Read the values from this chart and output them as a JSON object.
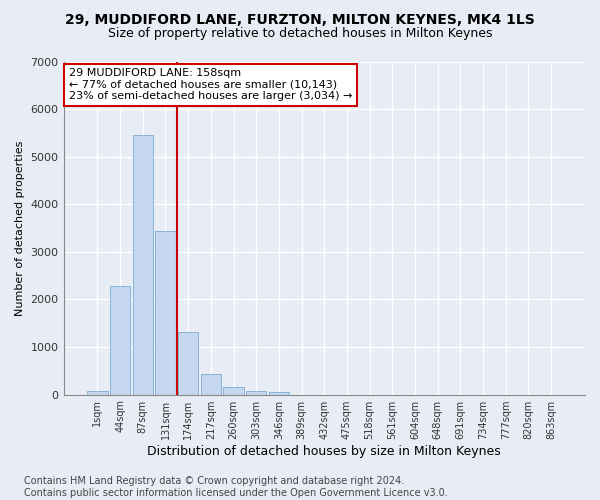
{
  "title1": "29, MUDDIFORD LANE, FURZTON, MILTON KEYNES, MK4 1LS",
  "title2": "Size of property relative to detached houses in Milton Keynes",
  "xlabel": "Distribution of detached houses by size in Milton Keynes",
  "ylabel": "Number of detached properties",
  "footnote": "Contains HM Land Registry data © Crown copyright and database right 2024.\nContains public sector information licensed under the Open Government Licence v3.0.",
  "categories": [
    "1sqm",
    "44sqm",
    "87sqm",
    "131sqm",
    "174sqm",
    "217sqm",
    "260sqm",
    "303sqm",
    "346sqm",
    "389sqm",
    "432sqm",
    "475sqm",
    "518sqm",
    "561sqm",
    "604sqm",
    "648sqm",
    "691sqm",
    "734sqm",
    "777sqm",
    "820sqm",
    "863sqm"
  ],
  "values": [
    75,
    2280,
    5450,
    3430,
    1310,
    440,
    155,
    80,
    55,
    0,
    0,
    0,
    0,
    0,
    0,
    0,
    0,
    0,
    0,
    0,
    0
  ],
  "bar_color": "#c5d8f0",
  "bar_edge_color": "#7aadd4",
  "vline_x": 3.5,
  "vline_color": "#cc0000",
  "annotation_text": "29 MUDDIFORD LANE: 158sqm\n← 77% of detached houses are smaller (10,143)\n23% of semi-detached houses are larger (3,034) →",
  "annotation_box_color": "white",
  "annotation_box_edge": "#cc0000",
  "ylim": [
    0,
    7000
  ],
  "bg_color": "#e8edf5",
  "axes_bg_color": "#e8edf5",
  "grid_color": "white",
  "title1_fontsize": 10,
  "title2_fontsize": 9,
  "xlabel_fontsize": 9,
  "ylabel_fontsize": 8,
  "footnote_fontsize": 7
}
